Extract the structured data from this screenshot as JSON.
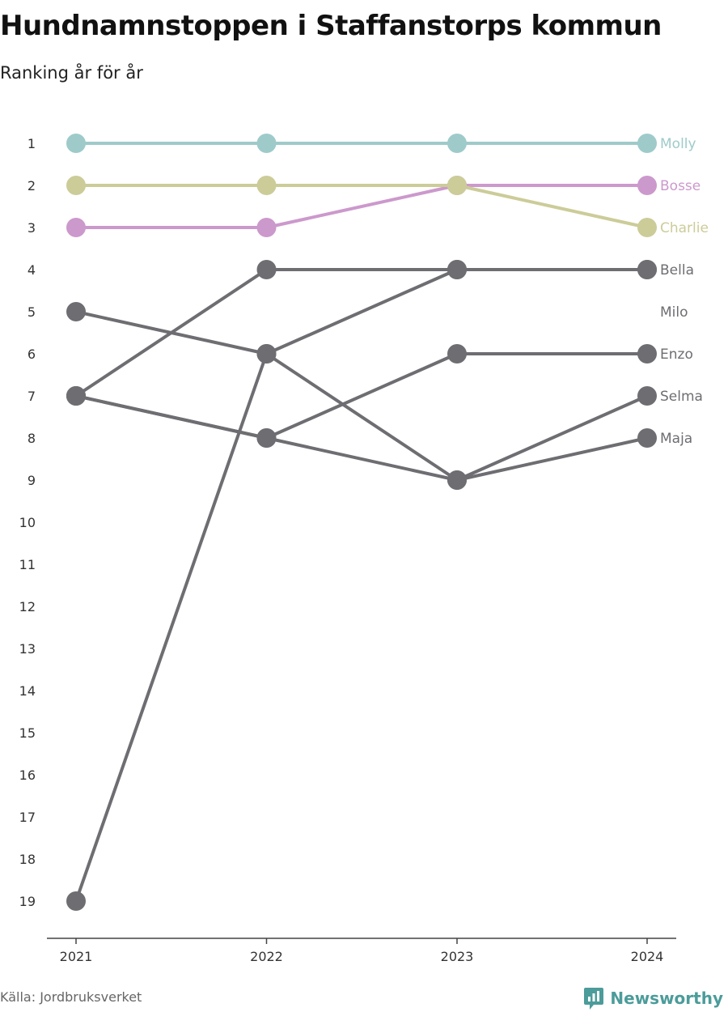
{
  "title": "Hundnamnstoppen i Staffanstorps kommun",
  "subtitle": "Ranking år för år",
  "source": "Källa: Jordbruksverket",
  "brand": "Newsworthy",
  "colors": {
    "teal": "#9ecbca",
    "olive": "#cccc99",
    "pink": "#cc99cc",
    "gray": "#6e6d72",
    "brand": "#4b9c9a"
  },
  "chart_data": {
    "type": "line",
    "subtype": "bump",
    "x": [
      "2021",
      "2022",
      "2023",
      "2024"
    ],
    "y_ticks": [
      "1",
      "2",
      "3",
      "4",
      "5",
      "6",
      "7",
      "8",
      "9",
      "10",
      "11",
      "12",
      "13",
      "14",
      "15",
      "16",
      "17",
      "18",
      "19"
    ],
    "y_reversed": true,
    "ylim": [
      1,
      19
    ],
    "series": [
      {
        "name": "Molly",
        "values": [
          1,
          1,
          1,
          1
        ],
        "color": "#9ecbca",
        "highlight": true
      },
      {
        "name": "Bosse",
        "values": [
          3,
          3,
          2,
          2
        ],
        "color": "#cc99cc",
        "highlight": true
      },
      {
        "name": "Charlie",
        "values": [
          2,
          2,
          2,
          3
        ],
        "color": "#cccc99",
        "highlight": true
      },
      {
        "name": "Bella",
        "values": [
          19,
          6,
          4,
          4
        ],
        "color": "#6e6d72",
        "highlight": false
      },
      {
        "name": "Milo",
        "values": [
          7,
          4,
          4,
          4
        ],
        "color": "#6e6d72",
        "highlight": false
      },
      {
        "name": "Enzo",
        "values": [
          7,
          8,
          6,
          6
        ],
        "color": "#6e6d72",
        "highlight": false
      },
      {
        "name": "Selma",
        "values": [
          7,
          8,
          9,
          7
        ],
        "color": "#6e6d72",
        "highlight": false
      },
      {
        "name": "Maja",
        "values": [
          5,
          6,
          9,
          8
        ],
        "color": "#6e6d72",
        "highlight": false
      }
    ],
    "end_labels": [
      {
        "text": "Molly",
        "rank": 1,
        "color": "#9ecbca"
      },
      {
        "text": "Bosse",
        "rank": 2,
        "color": "#cc99cc"
      },
      {
        "text": "Charlie",
        "rank": 3,
        "color": "#cccc99"
      },
      {
        "text": "Bella",
        "rank": 4,
        "color": "#6e6d72"
      },
      {
        "text": "Milo",
        "rank": 5,
        "color": "#6e6d72"
      },
      {
        "text": "Enzo",
        "rank": 6,
        "color": "#6e6d72"
      },
      {
        "text": "Selma",
        "rank": 7,
        "color": "#6e6d72"
      },
      {
        "text": "Maja",
        "rank": 8,
        "color": "#6e6d72"
      }
    ],
    "grid": false,
    "legend": "none"
  }
}
